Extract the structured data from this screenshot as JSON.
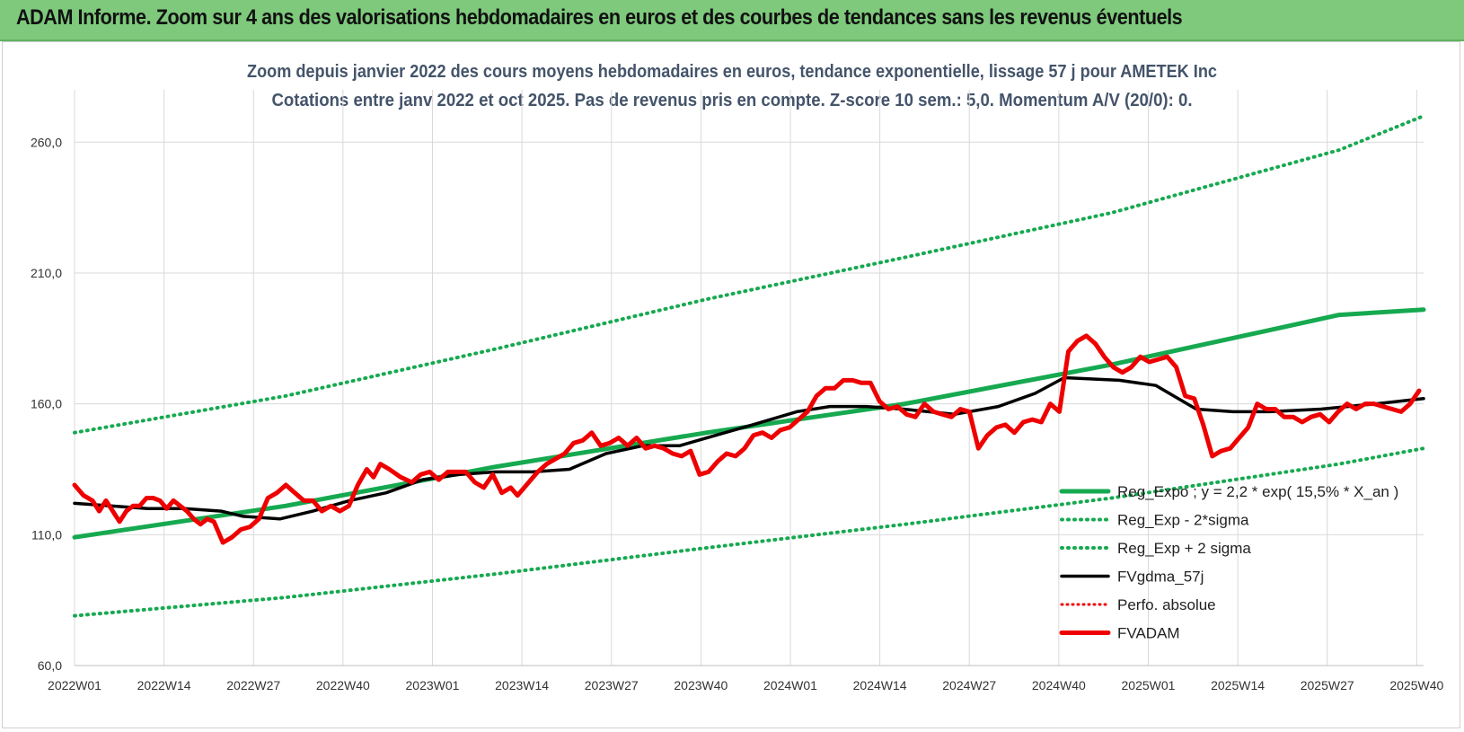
{
  "banner": {
    "title": "ADAM Informe. Zoom sur 4 ans des valorisations hebdomadaires en euros et des courbes de tendances sans les revenus éventuels"
  },
  "chart_data": {
    "type": "line",
    "title": "Zoom depuis janvier 2022 des cours moyens hebdomadaires en euros, tendance exponentielle, lissage 57 j pour AMETEK Inc",
    "subtitle": "Cotations entre janv 2022 et oct 2025. Pas de revenus pris en compte. Z-score 10 sem.: 5,0. Momentum A/V (20/0): 0.",
    "y_ticks": [
      "60,0",
      "110,0",
      "160,0",
      "210,0",
      "260,0"
    ],
    "ylim": [
      60,
      280
    ],
    "x_tick_labels": [
      "2022W01",
      "2022W14",
      "2022W27",
      "2022W40",
      "2023W01",
      "2023W14",
      "2023W27",
      "2023W40",
      "2024W01",
      "2024W14",
      "2024W27",
      "2024W40",
      "2025W01",
      "2025W14",
      "2025W27",
      "2025W40"
    ],
    "n_weeks": 197,
    "grid": true,
    "legend_position": "bottom-right",
    "colors": {
      "reg": "#16a950",
      "band": "#16a950",
      "fvg": "#000000",
      "perfo": "#ee0000",
      "fvadam": "#ee0000"
    },
    "series": [
      {
        "name": "Reg_Expo ; y = 2,2 * exp( 15,5% *  X_an )",
        "key": "reg",
        "style": "solid-thick",
        "points": [
          [
            0,
            109
          ],
          [
            50,
            121
          ],
          [
            100,
            136
          ],
          [
            150,
            149
          ],
          [
            197,
            160
          ],
          [
            246,
            175
          ],
          [
            300,
            194
          ],
          [
            320,
            196
          ]
        ]
      },
      {
        "name": "Reg_Exp - 2*sigma",
        "key": "low",
        "style": "dotted",
        "points": [
          [
            0,
            79
          ],
          [
            50,
            86
          ],
          [
            100,
            95
          ],
          [
            150,
            105
          ],
          [
            197,
            114
          ],
          [
            246,
            124
          ],
          [
            300,
            137
          ],
          [
            320,
            143
          ]
        ]
      },
      {
        "name": "Reg_Exp + 2 sigma",
        "key": "high",
        "style": "dotted",
        "points": [
          [
            0,
            149
          ],
          [
            50,
            163
          ],
          [
            100,
            181
          ],
          [
            150,
            200
          ],
          [
            197,
            216
          ],
          [
            246,
            233
          ],
          [
            300,
            257
          ],
          [
            320,
            270
          ]
        ]
      },
      {
        "name": "FVgdma_57j",
        "key": "fvg",
        "style": "solid",
        "points": [
          [
            0,
            122
          ],
          [
            10,
            121
          ],
          [
            20,
            120
          ],
          [
            30,
            120
          ],
          [
            40,
            119
          ],
          [
            46,
            117
          ],
          [
            56,
            116
          ],
          [
            65,
            119
          ],
          [
            75,
            123
          ],
          [
            85,
            126
          ],
          [
            95,
            131
          ],
          [
            105,
            133
          ],
          [
            115,
            134
          ],
          [
            125,
            134
          ],
          [
            135,
            135
          ],
          [
            145,
            141
          ],
          [
            155,
            144
          ],
          [
            165,
            144
          ],
          [
            175,
            148
          ],
          [
            185,
            152
          ],
          [
            197,
            157
          ],
          [
            206,
            159
          ],
          [
            216,
            159
          ],
          [
            226,
            158
          ],
          [
            240,
            156
          ],
          [
            252,
            159
          ],
          [
            262,
            164
          ],
          [
            270,
            170
          ],
          [
            285,
            169
          ],
          [
            295,
            167
          ],
          [
            306,
            158
          ],
          [
            316,
            157
          ],
          [
            326,
            157
          ],
          [
            340,
            158
          ],
          [
            355,
            160
          ],
          [
            368,
            162
          ]
        ]
      },
      {
        "name": "Perfo. absolue",
        "key": "perfo",
        "style": "dotted-red",
        "points": []
      },
      {
        "name": "FVADAM",
        "key": "fvadam",
        "style": "solid-thick-red",
        "points": [
          [
            0,
            129
          ],
          [
            4,
            125
          ],
          [
            8,
            123
          ],
          [
            11,
            119
          ],
          [
            14,
            123
          ],
          [
            17,
            119
          ],
          [
            20,
            115
          ],
          [
            23,
            119
          ],
          [
            26,
            121
          ],
          [
            29,
            121
          ],
          [
            32,
            124
          ],
          [
            35,
            124
          ],
          [
            38,
            123
          ],
          [
            41,
            120
          ],
          [
            44,
            123
          ],
          [
            47,
            121
          ],
          [
            50,
            119
          ],
          [
            53,
            116
          ],
          [
            56,
            114
          ],
          [
            59,
            116
          ],
          [
            62,
            115
          ],
          [
            66,
            107
          ],
          [
            70,
            109
          ],
          [
            74,
            112
          ],
          [
            78,
            113
          ],
          [
            82,
            116
          ],
          [
            86,
            124
          ],
          [
            90,
            126
          ],
          [
            94,
            129
          ],
          [
            98,
            126
          ],
          [
            102,
            123
          ],
          [
            106,
            123
          ],
          [
            110,
            119
          ],
          [
            114,
            121
          ],
          [
            118,
            119
          ],
          [
            122,
            121
          ],
          [
            126,
            129
          ],
          [
            130,
            135
          ],
          [
            133,
            132
          ],
          [
            136,
            137
          ],
          [
            140,
            135
          ],
          [
            145,
            132
          ],
          [
            150,
            130
          ],
          [
            154,
            133
          ],
          [
            158,
            134
          ],
          [
            162,
            131
          ],
          [
            166,
            134
          ],
          [
            170,
            134
          ],
          [
            174,
            134
          ],
          [
            178,
            130
          ],
          [
            182,
            128
          ],
          [
            186,
            133
          ],
          [
            190,
            126
          ],
          [
            194,
            128
          ],
          [
            197,
            125
          ],
          [
            202,
            130
          ],
          [
            206,
            134
          ],
          [
            210,
            137
          ],
          [
            214,
            139
          ],
          [
            218,
            141
          ],
          [
            222,
            145
          ],
          [
            226,
            146
          ],
          [
            230,
            149
          ],
          [
            234,
            144
          ],
          [
            238,
            145
          ],
          [
            242,
            147
          ],
          [
            246,
            144
          ],
          [
            250,
            147
          ],
          [
            254,
            143
          ],
          [
            258,
            144
          ],
          [
            262,
            143
          ],
          [
            266,
            141
          ],
          [
            270,
            140
          ],
          [
            274,
            142
          ],
          [
            278,
            133
          ],
          [
            282,
            134
          ],
          [
            286,
            138
          ],
          [
            290,
            141
          ],
          [
            294,
            140
          ],
          [
            298,
            143
          ],
          [
            302,
            148
          ],
          [
            306,
            149
          ],
          [
            310,
            147
          ],
          [
            314,
            150
          ],
          [
            318,
            151
          ],
          [
            322,
            154
          ],
          [
            326,
            157
          ],
          [
            330,
            163
          ],
          [
            334,
            166
          ],
          [
            338,
            166
          ],
          [
            342,
            169
          ],
          [
            346,
            169
          ],
          [
            350,
            168
          ],
          [
            354,
            168
          ],
          [
            358,
            161
          ],
          [
            362,
            158
          ],
          [
            366,
            159
          ],
          [
            370,
            156
          ],
          [
            374,
            155
          ],
          [
            378,
            160
          ],
          [
            382,
            157
          ],
          [
            386,
            156
          ],
          [
            390,
            155
          ],
          [
            394,
            158
          ],
          [
            398,
            157
          ],
          [
            402,
            143
          ],
          [
            406,
            148
          ],
          [
            410,
            151
          ],
          [
            414,
            152
          ],
          [
            418,
            149
          ],
          [
            422,
            153
          ],
          [
            426,
            154
          ],
          [
            430,
            153
          ],
          [
            434,
            160
          ],
          [
            438,
            157
          ],
          [
            442,
            180
          ],
          [
            446,
            184
          ],
          [
            450,
            186
          ],
          [
            454,
            183
          ],
          [
            458,
            178
          ],
          [
            462,
            174
          ],
          [
            466,
            172
          ],
          [
            470,
            174
          ],
          [
            474,
            178
          ],
          [
            478,
            176
          ],
          [
            482,
            177
          ],
          [
            486,
            178
          ],
          [
            490,
            174
          ],
          [
            494,
            163
          ],
          [
            498,
            162
          ],
          [
            502,
            152
          ],
          [
            506,
            140
          ],
          [
            510,
            142
          ],
          [
            514,
            143
          ],
          [
            518,
            147
          ],
          [
            522,
            151
          ],
          [
            526,
            160
          ],
          [
            530,
            158
          ],
          [
            534,
            158
          ],
          [
            538,
            155
          ],
          [
            542,
            155
          ],
          [
            546,
            153
          ],
          [
            550,
            155
          ],
          [
            554,
            156
          ],
          [
            558,
            153
          ],
          [
            562,
            157
          ],
          [
            566,
            160
          ],
          [
            570,
            158
          ],
          [
            574,
            160
          ],
          [
            578,
            160
          ],
          [
            582,
            159
          ],
          [
            586,
            158
          ],
          [
            590,
            157
          ],
          [
            594,
            160
          ],
          [
            598,
            165
          ]
        ]
      }
    ]
  }
}
